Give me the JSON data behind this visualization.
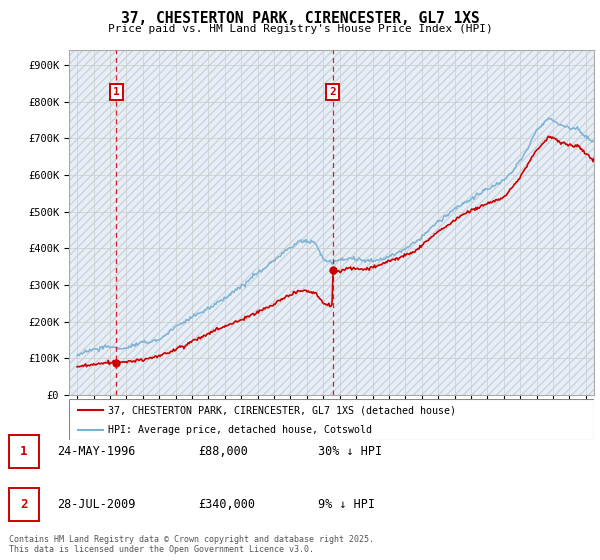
{
  "title": "37, CHESTERTON PARK, CIRENCESTER, GL7 1XS",
  "subtitle": "Price paid vs. HM Land Registry's House Price Index (HPI)",
  "legend_line1": "37, CHESTERTON PARK, CIRENCESTER, GL7 1XS (detached house)",
  "legend_line2": "HPI: Average price, detached house, Cotswold",
  "annotation1_year": 1996.39,
  "annotation1_value": 88000,
  "annotation2_year": 2009.57,
  "annotation2_value": 340000,
  "hpi_color": "#7ab0d4",
  "price_color": "#cc0000",
  "ylim": [
    0,
    940000
  ],
  "yticks": [
    0,
    100000,
    200000,
    300000,
    400000,
    500000,
    600000,
    700000,
    800000,
    900000
  ],
  "ytick_labels": [
    "£0",
    "£100K",
    "£200K",
    "£300K",
    "£400K",
    "£500K",
    "£600K",
    "£700K",
    "£800K",
    "£900K"
  ],
  "xmin": 1993.5,
  "xmax": 2025.5,
  "footer": "Contains HM Land Registry data © Crown copyright and database right 2025.\nThis data is licensed under the Open Government Licence v3.0.",
  "grid_color": "#cccccc",
  "bg_color": "#e8eef5",
  "hatch_color": "#c8d4e0"
}
